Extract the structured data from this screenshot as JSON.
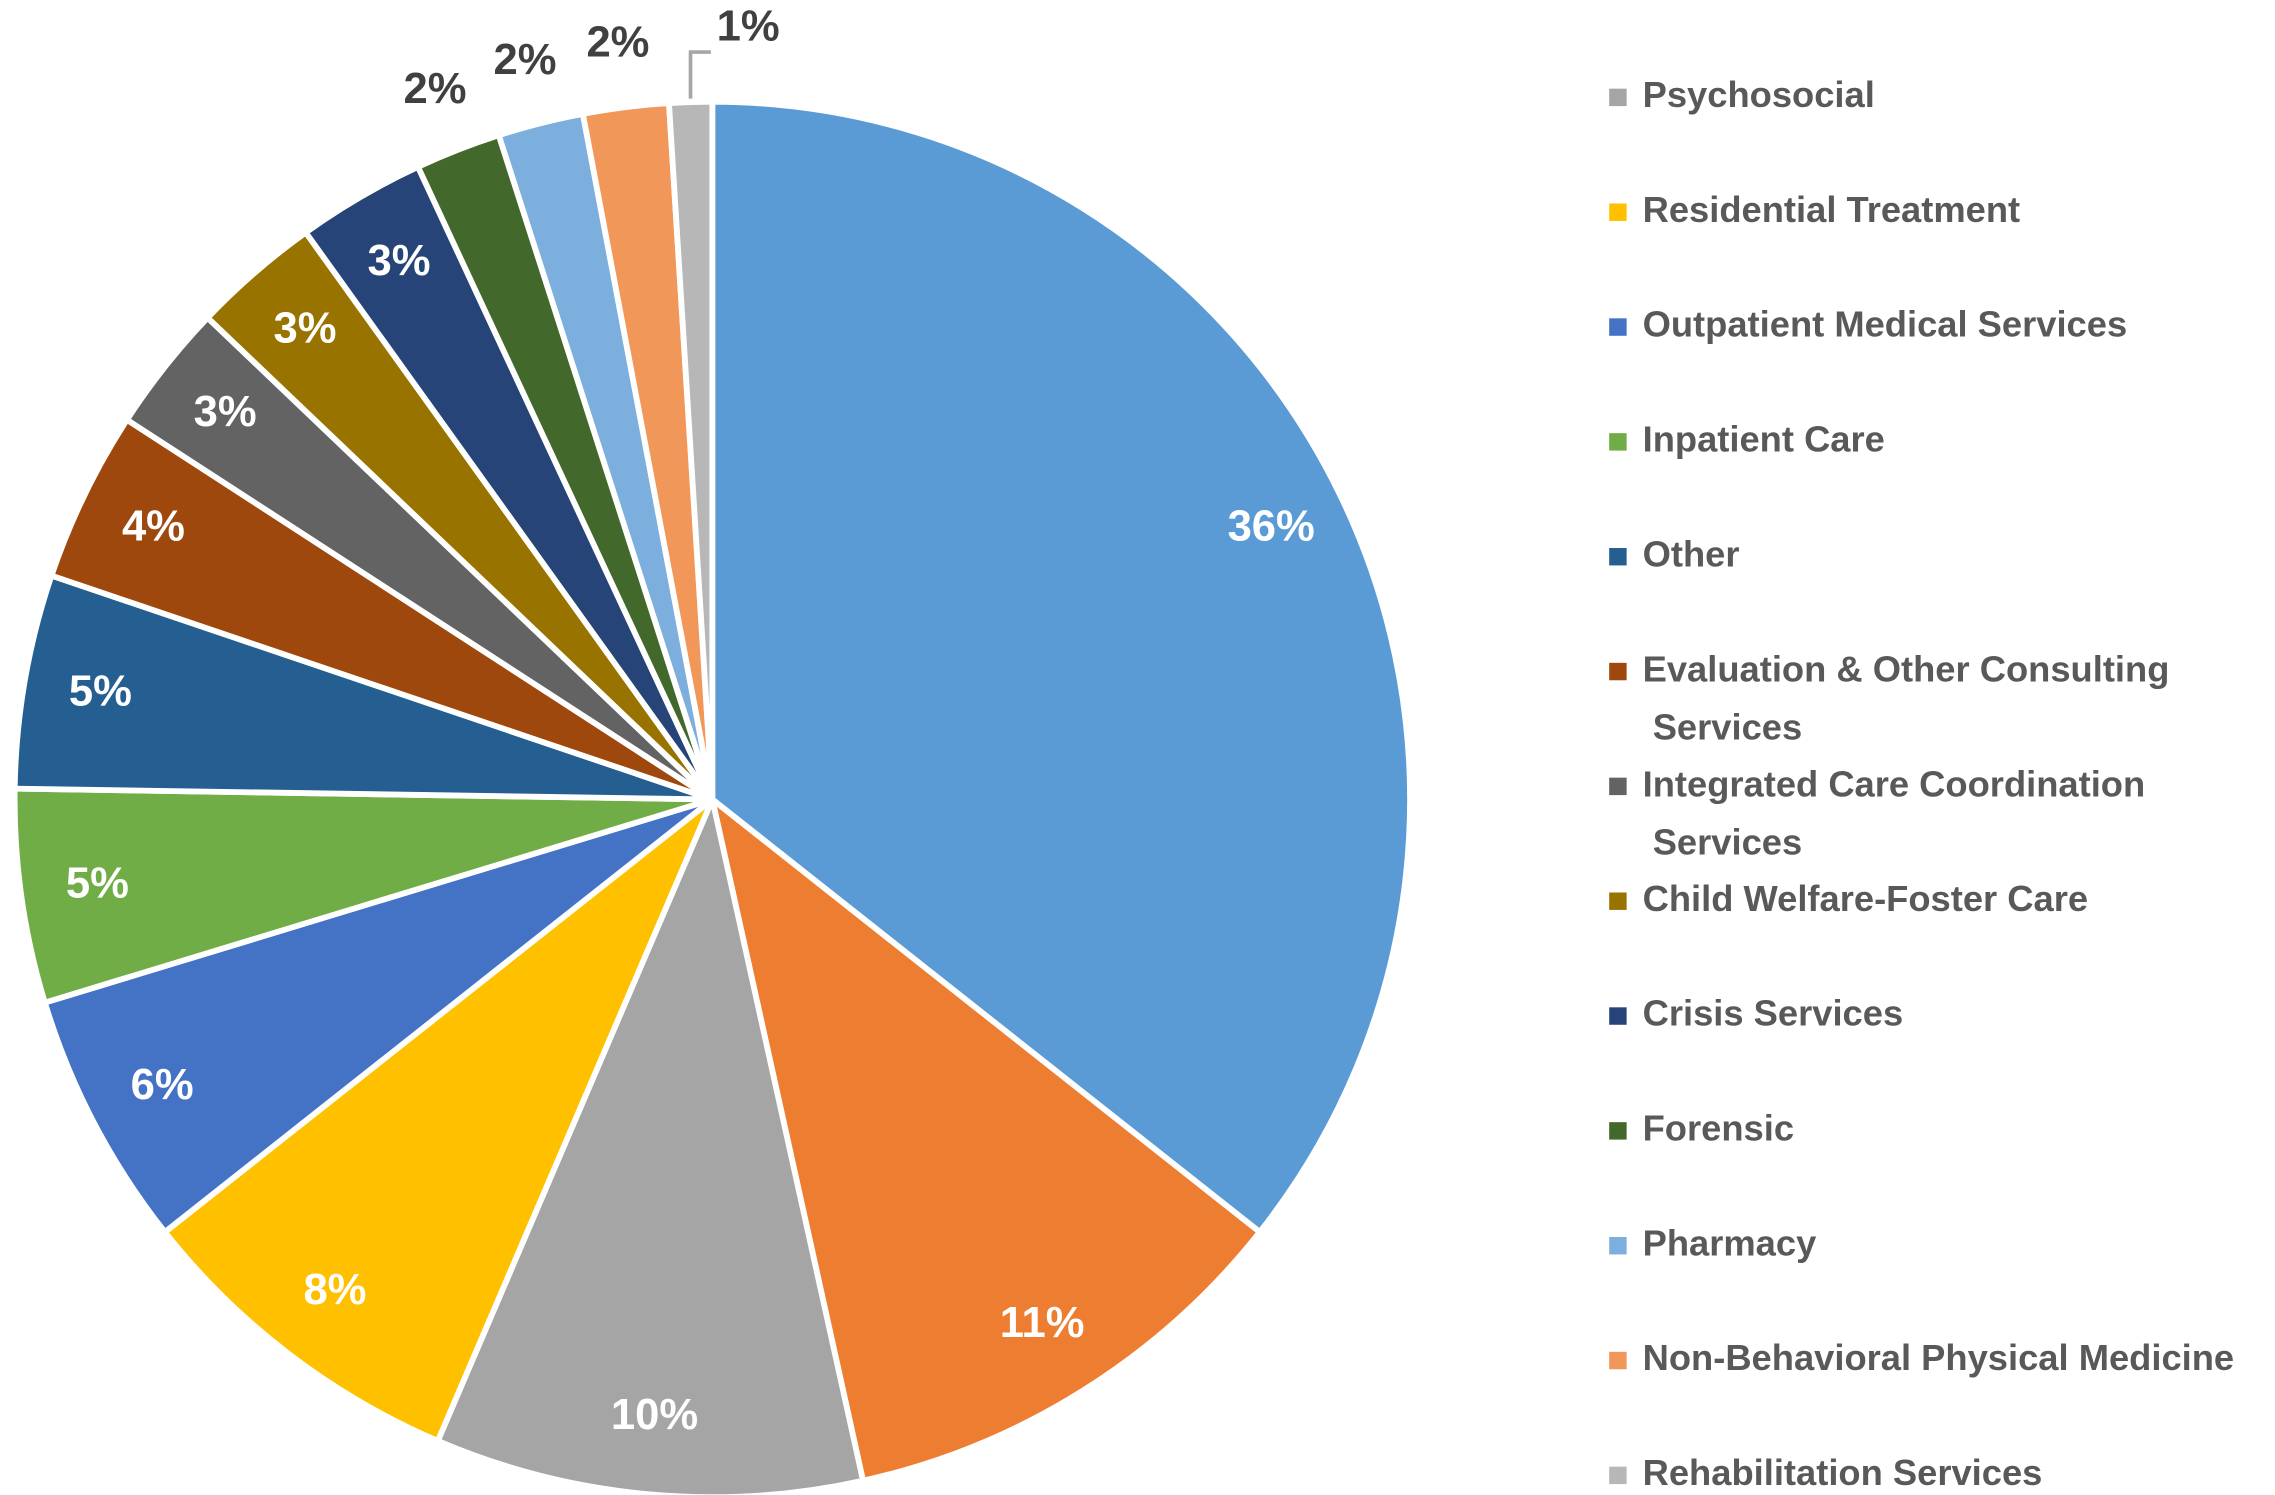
{
  "chart_data": {
    "type": "pie",
    "categories": [
      null,
      null,
      "Psychosocial",
      "Residential Treatment",
      "Outpatient Medical Services",
      "Inpatient Care",
      "Other",
      "Evaluation & Other Consulting Services",
      "Integrated Care Coordination Services",
      "Child Welfare-Foster Care",
      "Crisis Services",
      "Forensic",
      "Pharmacy",
      "Non-Behavioral Physical Medicine",
      "Rehabilitation Services"
    ],
    "values": [
      36,
      11,
      10,
      8,
      6,
      5,
      5,
      4,
      3,
      3,
      3,
      2,
      2,
      2,
      1
    ],
    "value_labels": [
      "36%",
      "11%",
      "10%",
      "8%",
      "6%",
      "5%",
      "5%",
      "4%",
      "3%",
      "3%",
      "3%",
      "2%",
      "2%",
      "2%",
      "1%"
    ],
    "colors": [
      "#5B9BD5",
      "#ED7D31",
      "#A5A5A5",
      "#FFC000",
      "#4472C4",
      "#70AD47",
      "#255E91",
      "#9E480E",
      "#636363",
      "#997300",
      "#264478",
      "#43682B",
      "#7CAFDD",
      "#F1975A",
      "#B7B7B7"
    ],
    "legend": "right"
  }
}
